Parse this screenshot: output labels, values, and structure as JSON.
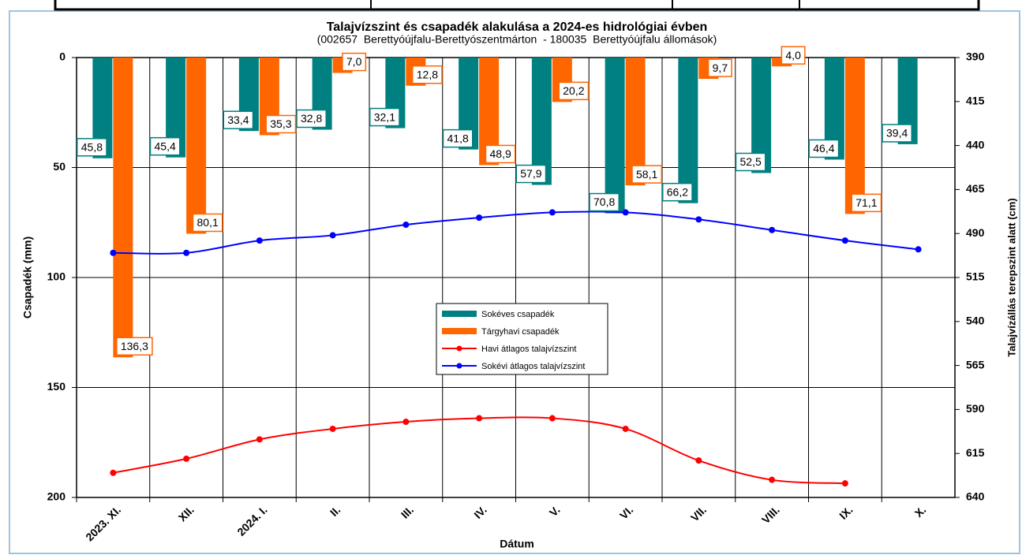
{
  "chart_data": {
    "type": "bar-line",
    "title": "Talajvízszint és csapadék alakulása a 2024-es hidrológiai évben",
    "subtitle": "(002657  Berettyóújfalu-Berettyószentmárton  - 180035  Berettyóújfalu állomások)",
    "x_label": "Dátum",
    "y_label": "Csapadék (mm)",
    "y2_label": "Talajvízállás terepszint alatt (cm)",
    "categories": [
      "2023. XI.",
      "XII.",
      "2024. I.",
      "II.",
      "III.",
      "IV.",
      "V.",
      "VI.",
      "VII.",
      "VIII.",
      "IX.",
      "X."
    ],
    "ylim": [
      0,
      200
    ],
    "yticks": [
      0,
      50,
      100,
      150,
      200
    ],
    "y_inverted": true,
    "y2lim": [
      390,
      640
    ],
    "y2ticks": [
      390,
      415,
      440,
      465,
      490,
      515,
      540,
      565,
      590,
      615,
      640
    ],
    "y2_inverted": true,
    "grid": true,
    "series": [
      {
        "name": "Sokéves csapadék",
        "kind": "bar",
        "color": "#008080",
        "values": [
          45.8,
          45.4,
          33.4,
          32.8,
          32.1,
          41.8,
          57.9,
          70.8,
          66.2,
          52.5,
          46.4,
          39.4
        ],
        "value_labels": [
          "45,8",
          "45,4",
          "33,4",
          "32,8",
          "32,1",
          "41,8",
          "57,9",
          "70,8",
          "66,2",
          "52,5",
          "46,4",
          "39,4"
        ]
      },
      {
        "name": "Tárgyhavi csapadék",
        "kind": "bar",
        "color": "#ff6600",
        "values": [
          136.3,
          80.1,
          35.3,
          7.0,
          12.8,
          48.9,
          20.2,
          58.1,
          9.7,
          4.0,
          71.1,
          null
        ],
        "value_labels": [
          "136,3",
          "80,1",
          "35,3",
          "7,0",
          "12,8",
          "48,9",
          "20,2",
          "58,1",
          "9,7",
          "4,0",
          "71,1",
          null
        ]
      },
      {
        "name": "Havi átlagos talajvízszint",
        "kind": "line",
        "axis": "y2",
        "color": "#ff0000",
        "values": [
          626,
          618,
          607,
          601,
          597,
          595,
          595,
          601,
          619,
          630,
          632,
          null
        ]
      },
      {
        "name": "Sokévi átlagos talajvízszint",
        "kind": "line",
        "axis": "y2",
        "color": "#0000ff",
        "values": [
          501,
          501,
          494,
          491,
          485,
          481,
          478,
          478,
          482,
          488,
          494,
          499
        ]
      }
    ]
  }
}
